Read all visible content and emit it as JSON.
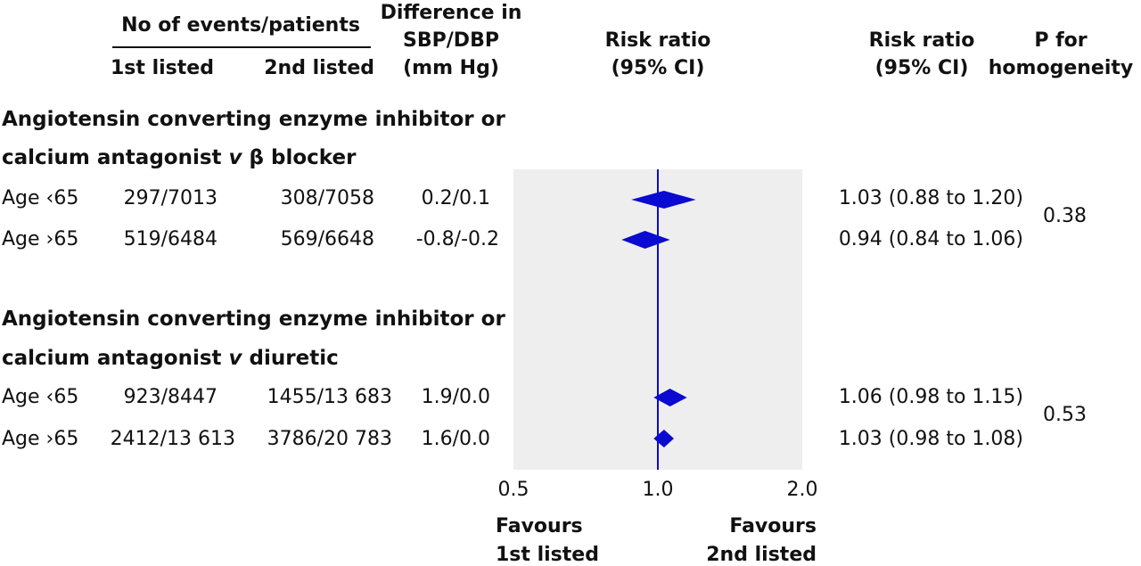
{
  "headers": {
    "events_group": "No of events/patients",
    "first_listed": "1st listed",
    "second_listed": "2nd listed",
    "diff_line1": "Difference in",
    "diff_line2": "SBP/DBP",
    "diff_line3": "(mm Hg)",
    "rr_plot_line1": "Risk ratio",
    "rr_plot_line2": "(95% CI)",
    "rr_text_line1": "Risk ratio",
    "rr_text_line2": "(95% CI)",
    "p_line1": "P for",
    "p_line2": "homogeneity"
  },
  "groups": [
    {
      "title_line1": "Angiotensin converting enzyme inhibitor or",
      "title_line2_pre": "calcium antagonist ",
      "title_line2_v": "v",
      "title_line2_post": " β blocker",
      "p_value": "0.38",
      "rows": [
        {
          "label": "Age ‹65",
          "first": "297/7013",
          "second": "308/7058",
          "diff": "0.2/0.1",
          "rr_text": "1.03 (0.88 to 1.20)"
        },
        {
          "label": "Age ›65",
          "first": "519/6484",
          "second": "569/6648",
          "diff": "-0.8/-0.2",
          "rr_text": "0.94 (0.84 to 1.06)"
        }
      ]
    },
    {
      "title_line1": "Angiotensin converting enzyme inhibitor or",
      "title_line2_pre": "calcium antagonist ",
      "title_line2_v": "v",
      "title_line2_post": " diuretic",
      "p_value": "0.53",
      "rows": [
        {
          "label": "Age ‹65",
          "first": "923/8447",
          "second": "1455/13 683",
          "diff": "1.9/0.0",
          "rr_text": "1.06 (0.98 to 1.15)"
        },
        {
          "label": "Age ›65",
          "first": "2412/13 613",
          "second": "3786/20 783",
          "diff": "1.6/0.0",
          "rr_text": "1.03 (0.98 to 1.08)"
        }
      ]
    }
  ],
  "axis": {
    "favours_left_line1": "Favours",
    "favours_left_line2": "1st listed",
    "favours_right_line1": "Favours",
    "favours_right_line2": "2nd listed"
  },
  "colors": {
    "marker": "#0a0ad0",
    "reference_line": "#0a0ad0",
    "panel": "#eeeeee"
  },
  "chart_data": {
    "type": "forest",
    "scale": "log",
    "xlim": [
      0.5,
      2.0
    ],
    "xticks": [
      0.5,
      1.0,
      2.0
    ],
    "xtick_labels": [
      "0.5",
      "1.0",
      "2.0"
    ],
    "reference": 1.0,
    "series": [
      {
        "group": "Angiotensin converting enzyme inhibitor or calcium antagonist v β blocker",
        "label": "Age ‹65",
        "rr": 1.03,
        "lo": 0.88,
        "hi": 1.2
      },
      {
        "group": "Angiotensin converting enzyme inhibitor or calcium antagonist v β blocker",
        "label": "Age ›65",
        "rr": 0.94,
        "lo": 0.84,
        "hi": 1.06
      },
      {
        "group": "Angiotensin converting enzyme inhibitor or calcium antagonist v diuretic",
        "label": "Age ‹65",
        "rr": 1.06,
        "lo": 0.98,
        "hi": 1.15
      },
      {
        "group": "Angiotensin converting enzyme inhibitor or calcium antagonist v diuretic",
        "label": "Age ›65",
        "rr": 1.03,
        "lo": 0.98,
        "hi": 1.08
      }
    ]
  }
}
